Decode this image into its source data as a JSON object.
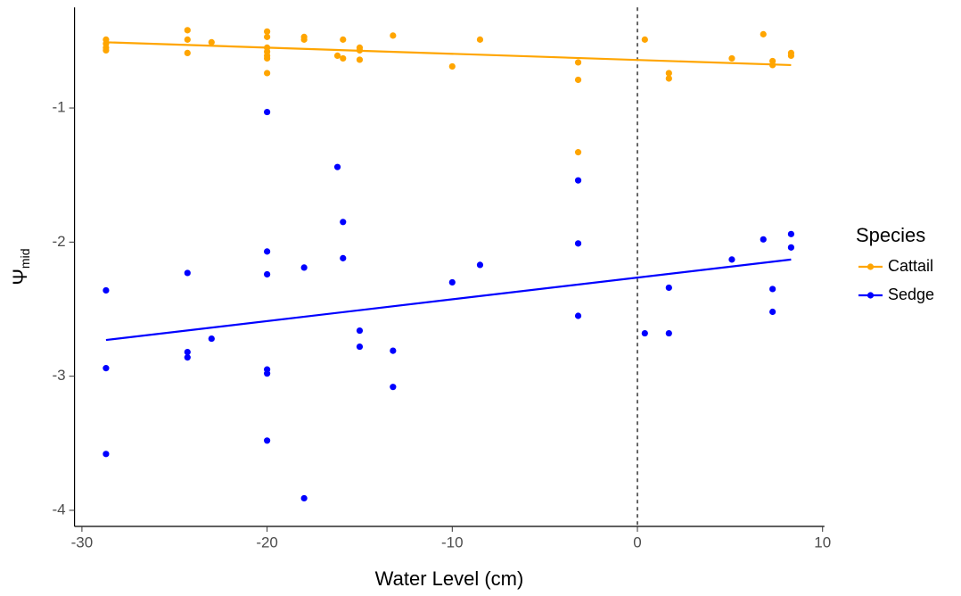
{
  "chart_data": {
    "type": "scatter",
    "xlabel": "Water Level (cm)",
    "ylabel": "Ψ",
    "ylabel_sub": "mid",
    "legend_title": "Species",
    "legend": "right",
    "grid": false,
    "vline": 0,
    "xlim": [
      -30.4,
      10.1
    ],
    "ylim": [
      -4.12,
      -0.25
    ],
    "xticks": [
      -30,
      -20,
      -10,
      0,
      10
    ],
    "yticks": [
      -4,
      -3,
      -2,
      -1
    ],
    "series": [
      {
        "name": "Cattail",
        "color": "#FFA500",
        "x": [
          -28.7,
          -28.7,
          -28.7,
          -28.7,
          -24.3,
          -24.3,
          -24.3,
          -23,
          -20,
          -20,
          -20,
          -20,
          -20,
          -20,
          -20,
          -18,
          -18,
          -16.2,
          -15.9,
          -15.9,
          -15,
          -15,
          -15,
          -13.2,
          -10,
          -8.5,
          -3.2,
          -3.2,
          -3.2,
          0.4,
          1.7,
          1.7,
          5.1,
          6.8,
          7.3,
          7.3,
          8.3,
          8.3
        ],
        "values": [
          -0.49,
          -0.52,
          -0.55,
          -0.57,
          -0.42,
          -0.49,
          -0.59,
          -0.51,
          -0.43,
          -0.47,
          -0.55,
          -0.58,
          -0.61,
          -0.63,
          -0.74,
          -0.47,
          -0.49,
          -0.61,
          -0.49,
          -0.63,
          -0.55,
          -0.57,
          -0.64,
          -0.46,
          -0.69,
          -0.49,
          -0.66,
          -0.79,
          -1.33,
          -0.49,
          -0.74,
          -0.78,
          -0.63,
          -0.45,
          -0.65,
          -0.68,
          -0.59,
          -0.61
        ],
        "fit": {
          "x": [
            -28.7,
            8.3
          ],
          "y": [
            -0.51,
            -0.68
          ]
        }
      },
      {
        "name": "Sedge",
        "color": "#0000FF",
        "x": [
          -28.7,
          -28.7,
          -28.7,
          -24.3,
          -24.3,
          -24.3,
          -23,
          -20,
          -20,
          -20,
          -20,
          -20,
          -20,
          -18,
          -18,
          -16.2,
          -15.9,
          -15.9,
          -15,
          -15,
          -13.2,
          -13.2,
          -10,
          -8.5,
          -3.2,
          -3.2,
          -3.2,
          0.4,
          1.7,
          1.7,
          5.1,
          6.8,
          7.3,
          7.3,
          8.3,
          8.3
        ],
        "values": [
          -2.36,
          -2.94,
          -3.58,
          -2.23,
          -2.82,
          -2.86,
          -2.72,
          -1.03,
          -2.07,
          -2.24,
          -2.95,
          -2.98,
          -3.48,
          -2.19,
          -3.91,
          -1.44,
          -1.85,
          -2.12,
          -2.66,
          -2.78,
          -2.81,
          -3.08,
          -2.3,
          -2.17,
          -1.54,
          -2.01,
          -2.55,
          -2.68,
          -2.34,
          -2.68,
          -2.13,
          -1.98,
          -2.35,
          -2.52,
          -1.94,
          -2.04
        ],
        "fit": {
          "x": [
            -28.7,
            8.3
          ],
          "y": [
            -2.73,
            -2.13
          ]
        }
      }
    ]
  }
}
